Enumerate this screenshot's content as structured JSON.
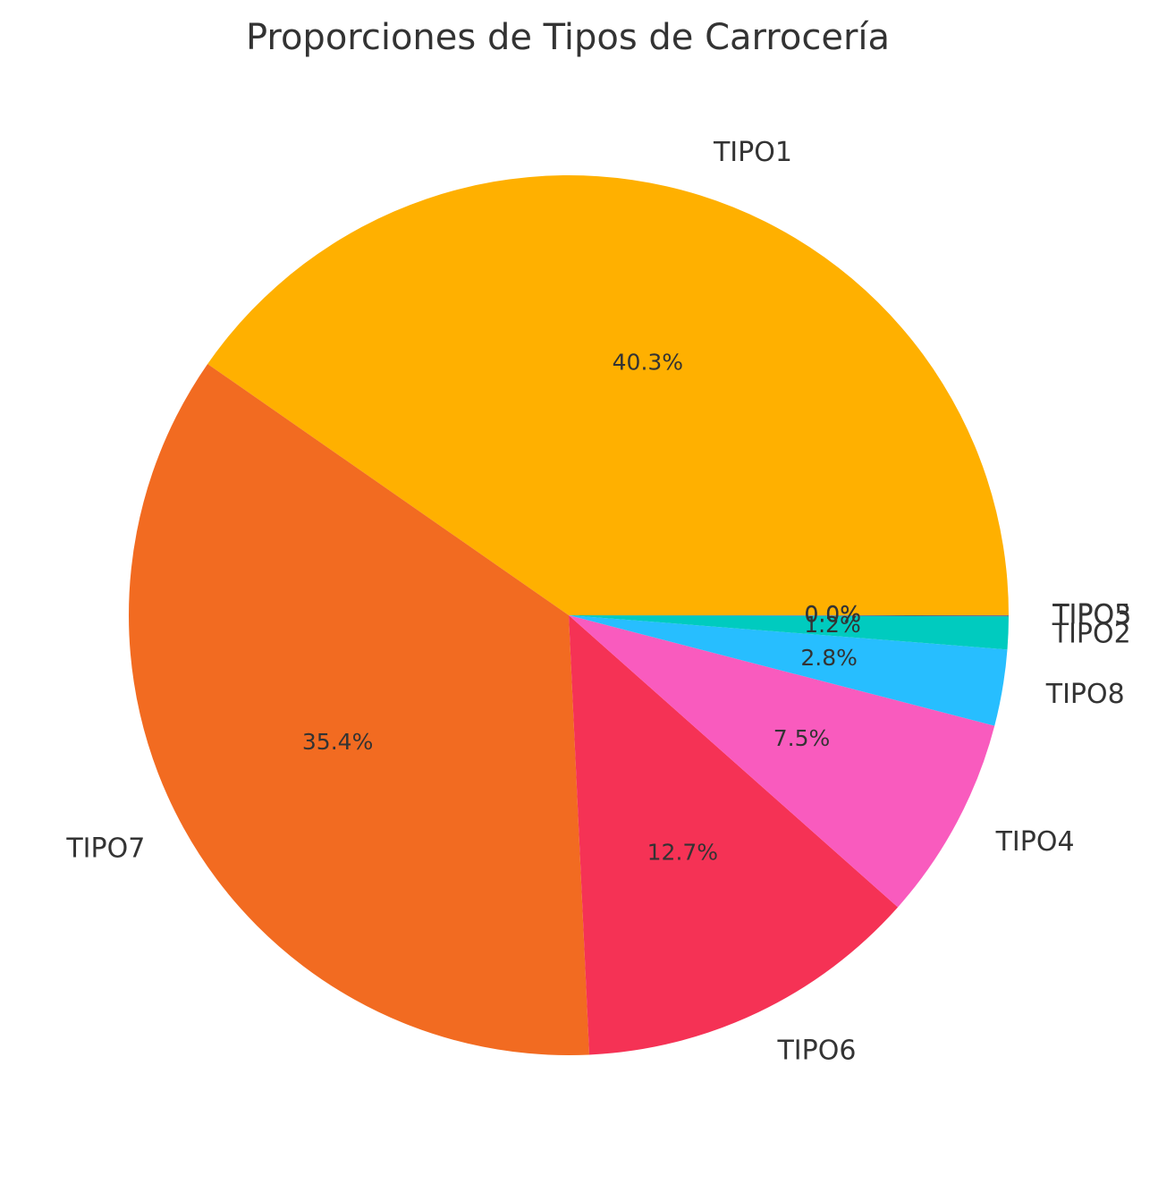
{
  "chart_data": {
    "type": "pie",
    "title": "Proporciones de Tipos de Carrocería",
    "slices": [
      {
        "label": "TIPO1",
        "value": 40.3,
        "pct_label": "40.3%",
        "color": "#FFB000"
      },
      {
        "label": "TIPO7",
        "value": 35.4,
        "pct_label": "35.4%",
        "color": "#F26B21"
      },
      {
        "label": "TIPO6",
        "value": 12.7,
        "pct_label": "12.7%",
        "color": "#F53255"
      },
      {
        "label": "TIPO4",
        "value": 7.5,
        "pct_label": "7.5%",
        "color": "#F95BBE"
      },
      {
        "label": "TIPO8",
        "value": 2.8,
        "pct_label": "2.8%",
        "color": "#27BEFF"
      },
      {
        "label": "TIPO2",
        "value": 1.2,
        "pct_label": "1.2%",
        "color": "#00CBBF"
      },
      {
        "label": "TIPO3",
        "value": 0.02,
        "pct_label": "0.0%",
        "color": "#2E7D32"
      },
      {
        "label": "TIPO5",
        "value": 0.02,
        "pct_label": "0.0%",
        "color": "#7E57C2"
      }
    ],
    "start_angle_deg": 0,
    "direction": "counterclockwise"
  }
}
